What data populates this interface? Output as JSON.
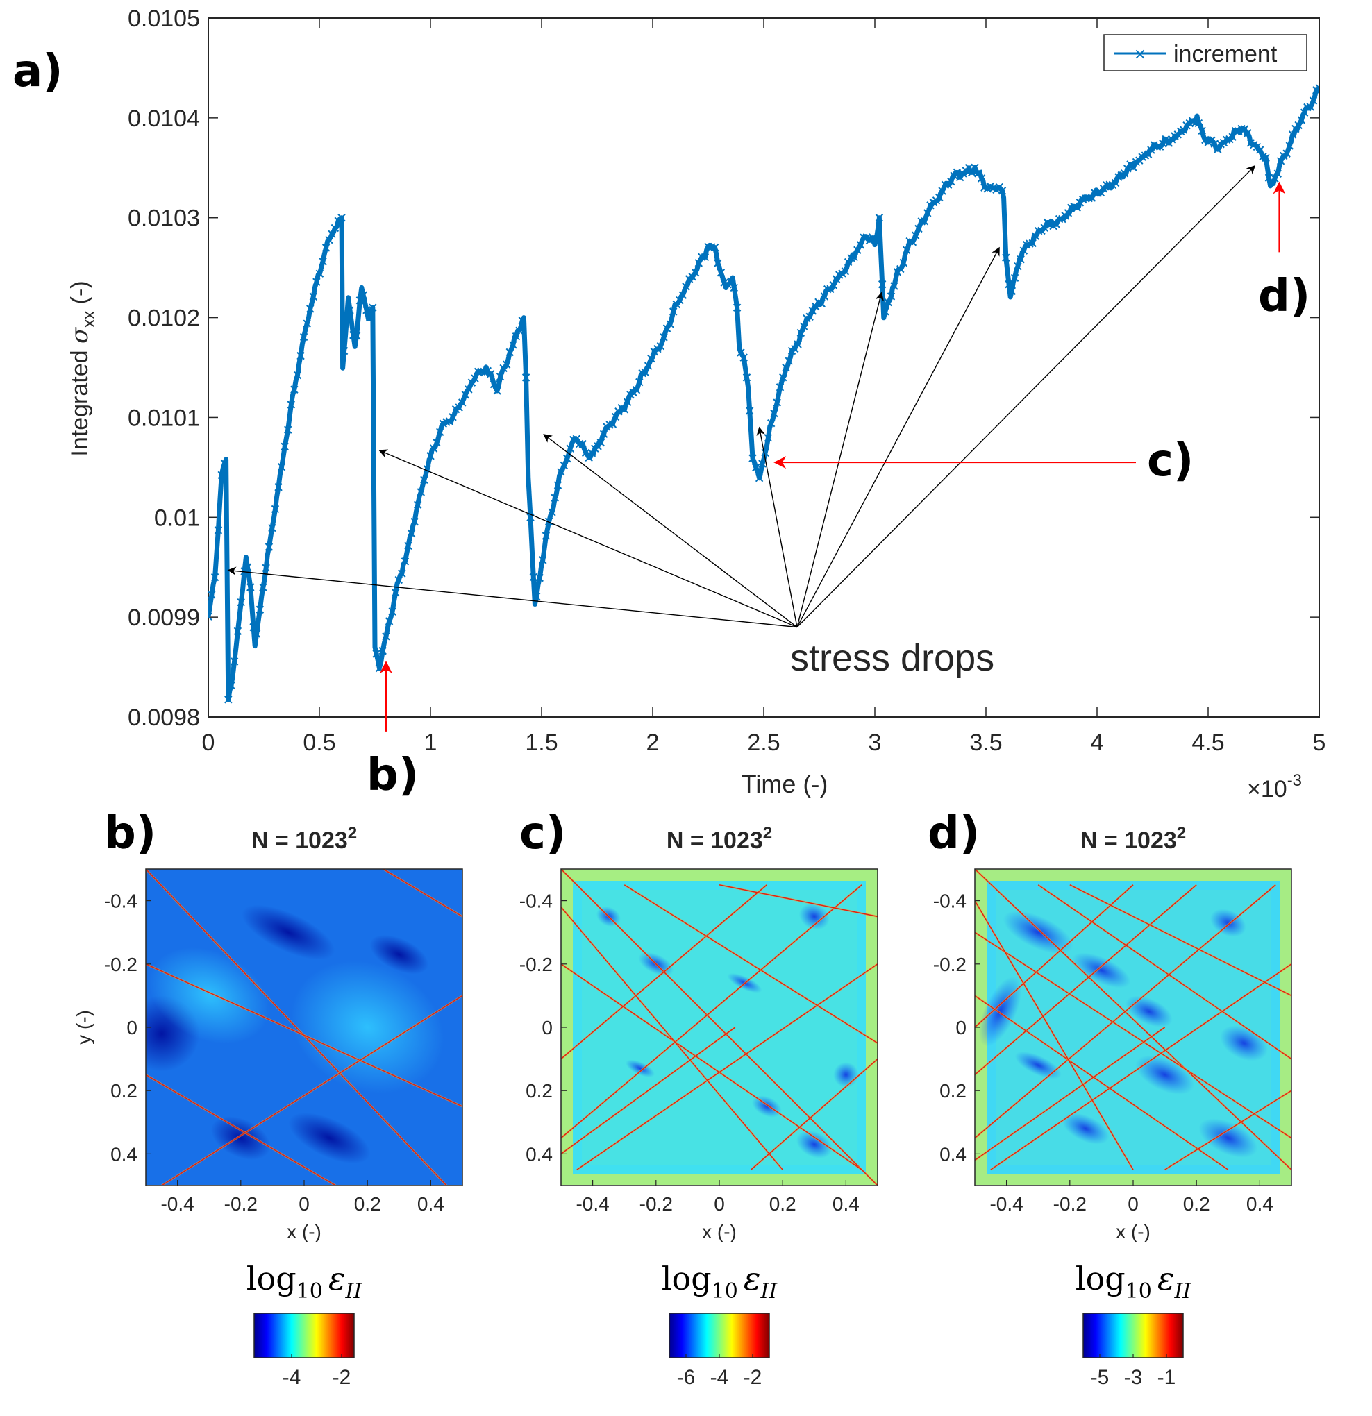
{
  "chart_data": [
    {
      "type": "line",
      "panel": "a)",
      "title": "",
      "xlabel": "Time (-)",
      "ylabel_prefix": "Integrated",
      "ylabel_symbol": "σ",
      "ylabel_sub": "xx",
      "ylabel_suffix": "(-)",
      "x_multiplier_base": "×10",
      "x_multiplier_exp": "-3",
      "xlim": [
        0,
        5
      ],
      "ylim": [
        0.0098,
        0.0105
      ],
      "xticks": [
        0,
        0.5,
        1,
        1.5,
        2,
        2.5,
        3,
        3.5,
        4,
        4.5,
        5
      ],
      "xtick_labels": [
        "0",
        "0.5",
        "1",
        "1.5",
        "2",
        "2.5",
        "3",
        "3.5",
        "4",
        "4.5",
        "5"
      ],
      "yticks": [
        0.0098,
        0.0099,
        0.01,
        0.0101,
        0.0102,
        0.0103,
        0.0104,
        0.0105
      ],
      "ytick_labels": [
        "0.0098",
        "0.0099",
        "0.01",
        "0.0101",
        "0.0102",
        "0.0103",
        "0.0104",
        "0.0105"
      ],
      "legend": "increment",
      "legend_position": "top-right",
      "series": [
        {
          "name": "increment",
          "color": "#0072BD",
          "marker": "x",
          "points": [
            [
              0.0,
              0.0099
            ],
            [
              0.03,
              0.00994
            ],
            [
              0.06,
              0.01004
            ],
            [
              0.08,
              0.010058
            ],
            [
              0.09,
              0.00982
            ],
            [
              0.11,
              0.00984
            ],
            [
              0.14,
              0.0099
            ],
            [
              0.17,
              0.00996
            ],
            [
              0.19,
              0.00993
            ],
            [
              0.21,
              0.00987
            ],
            [
              0.24,
              0.00992
            ],
            [
              0.28,
              0.00998
            ],
            [
              0.33,
              0.01005
            ],
            [
              0.38,
              0.01012
            ],
            [
              0.43,
              0.01018
            ],
            [
              0.48,
              0.01023
            ],
            [
              0.53,
              0.01027
            ],
            [
              0.57,
              0.01029
            ],
            [
              0.6,
              0.0103
            ],
            [
              0.605,
              0.01015
            ],
            [
              0.63,
              0.01022
            ],
            [
              0.66,
              0.01017
            ],
            [
              0.69,
              0.01023
            ],
            [
              0.72,
              0.0102
            ],
            [
              0.74,
              0.01021
            ],
            [
              0.75,
              0.00987
            ],
            [
              0.77,
              0.00985
            ],
            [
              0.8,
              0.00988
            ],
            [
              0.85,
              0.00993
            ],
            [
              0.9,
              0.00997
            ],
            [
              0.95,
              0.01002
            ],
            [
              1.0,
              0.01006
            ],
            [
              1.05,
              0.01009
            ],
            [
              1.1,
              0.0101
            ],
            [
              1.15,
              0.01012
            ],
            [
              1.2,
              0.01014
            ],
            [
              1.25,
              0.01015
            ],
            [
              1.3,
              0.01013
            ],
            [
              1.35,
              0.01016
            ],
            [
              1.4,
              0.01019
            ],
            [
              1.42,
              0.0102
            ],
            [
              1.43,
              0.01014
            ],
            [
              1.44,
              0.01004
            ],
            [
              1.45,
              0.01
            ],
            [
              1.47,
              0.00991
            ],
            [
              1.52,
              0.00998
            ],
            [
              1.58,
              0.01004
            ],
            [
              1.65,
              0.01008
            ],
            [
              1.72,
              0.01006
            ],
            [
              1.8,
              0.01009
            ],
            [
              1.9,
              0.01012
            ],
            [
              2.0,
              0.01016
            ],
            [
              2.05,
              0.01018
            ],
            [
              2.1,
              0.01021
            ],
            [
              2.15,
              0.01023
            ],
            [
              2.2,
              0.01025
            ],
            [
              2.25,
              0.01027
            ],
            [
              2.28,
              0.01027
            ],
            [
              2.3,
              0.01025
            ],
            [
              2.33,
              0.01023
            ],
            [
              2.36,
              0.01024
            ],
            [
              2.38,
              0.01021
            ],
            [
              2.39,
              0.01017
            ],
            [
              2.41,
              0.01016
            ],
            [
              2.43,
              0.01013
            ],
            [
              2.45,
              0.01006
            ],
            [
              2.48,
              0.01004
            ],
            [
              2.52,
              0.01008
            ],
            [
              2.6,
              0.01015
            ],
            [
              2.7,
              0.0102
            ],
            [
              2.8,
              0.01023
            ],
            [
              2.9,
              0.01026
            ],
            [
              2.95,
              0.01028
            ],
            [
              2.99,
              0.01028
            ],
            [
              3.0,
              0.01027
            ],
            [
              3.02,
              0.0103
            ],
            [
              3.04,
              0.0102
            ],
            [
              3.08,
              0.01023
            ],
            [
              3.15,
              0.01027
            ],
            [
              3.25,
              0.01031
            ],
            [
              3.35,
              0.01034
            ],
            [
              3.45,
              0.01035
            ],
            [
              3.48,
              0.01034
            ],
            [
              3.5,
              0.01033
            ],
            [
              3.56,
              0.01033
            ],
            [
              3.58,
              0.01032
            ],
            [
              3.59,
              0.01026
            ],
            [
              3.61,
              0.01022
            ],
            [
              3.65,
              0.01026
            ],
            [
              3.75,
              0.01029
            ],
            [
              3.85,
              0.0103
            ],
            [
              3.95,
              0.01032
            ],
            [
              4.05,
              0.01033
            ],
            [
              4.15,
              0.01035
            ],
            [
              4.25,
              0.01037
            ],
            [
              4.35,
              0.01038
            ],
            [
              4.45,
              0.0104
            ],
            [
              4.48,
              0.01038
            ],
            [
              4.55,
              0.01037
            ],
            [
              4.65,
              0.01039
            ],
            [
              4.72,
              0.01037
            ],
            [
              4.76,
              0.01036
            ],
            [
              4.78,
              0.01033
            ],
            [
              4.82,
              0.01035
            ],
            [
              4.9,
              0.01039
            ],
            [
              5.0,
              0.01043
            ]
          ]
        }
      ],
      "annotations": {
        "stress_drops_label": "stress drops",
        "stress_drop_targets": [
          [
            0.09,
            0.009947
          ],
          [
            0.77,
            0.010067
          ],
          [
            1.51,
            0.010083
          ],
          [
            2.48,
            0.01009
          ],
          [
            3.03,
            0.010225
          ],
          [
            3.56,
            0.01027
          ],
          [
            4.71,
            0.010352
          ]
        ],
        "stress_drop_origin": [
          2.65,
          0.00989
        ],
        "red_markers": [
          {
            "label": "b)",
            "target": [
              0.8,
              0.009855
            ],
            "direction": "up"
          },
          {
            "label": "c)",
            "target": [
              2.55,
              0.010055
            ],
            "direction": "left"
          },
          {
            "label": "d)",
            "target": [
              4.82,
              0.010335
            ],
            "direction": "up"
          }
        ]
      }
    },
    {
      "type": "heatmap",
      "panel": "b)",
      "title_base": "N = 1023",
      "title_exp": "2",
      "xlabel": "x (-)",
      "ylabel": "y (-)",
      "xlim": [
        -0.5,
        0.5
      ],
      "ylim": [
        0.5,
        -0.5
      ],
      "xtick_labels": [
        "-0.4",
        "-0.2",
        "0",
        "0.2",
        "0.4"
      ],
      "ytick_labels": [
        "-0.4",
        "-0.2",
        "0",
        "0.2",
        "0.4"
      ],
      "colorbar_label_base": "log",
      "colorbar_label_sub": "10",
      "colorbar_label_symbol": "ε",
      "colorbar_label_symbol_sub": "II",
      "colorbar_ticks": [
        "-4",
        "-2"
      ],
      "colorbar_range": [
        -5.5,
        -1.5
      ],
      "background_level": "dark-blue"
    },
    {
      "type": "heatmap",
      "panel": "c)",
      "title_base": "N = 1023",
      "title_exp": "2",
      "xlabel": "x (-)",
      "ylabel": "",
      "xlim": [
        -0.5,
        0.5
      ],
      "ylim": [
        0.5,
        -0.5
      ],
      "xtick_labels": [
        "-0.4",
        "-0.2",
        "0",
        "0.2",
        "0.4"
      ],
      "ytick_labels": [
        "-0.4",
        "-0.2",
        "0",
        "0.2",
        "0.4"
      ],
      "colorbar_label_base": "log",
      "colorbar_label_sub": "10",
      "colorbar_label_symbol": "ε",
      "colorbar_label_symbol_sub": "II",
      "colorbar_ticks": [
        "-6",
        "-4",
        "-2"
      ],
      "colorbar_range": [
        -7,
        -1
      ],
      "background_level": "cyan"
    },
    {
      "type": "heatmap",
      "panel": "d)",
      "title_base": "N = 1023",
      "title_exp": "2",
      "xlabel": "x (-)",
      "ylabel": "",
      "xlim": [
        -0.5,
        0.5
      ],
      "ylim": [
        0.5,
        -0.5
      ],
      "xtick_labels": [
        "-0.4",
        "-0.2",
        "0",
        "0.2",
        "0.4"
      ],
      "ytick_labels": [
        "-0.4",
        "-0.2",
        "0",
        "0.2",
        "0.4"
      ],
      "colorbar_label_base": "log",
      "colorbar_label_sub": "10",
      "colorbar_label_symbol": "ε",
      "colorbar_label_symbol_sub": "II",
      "colorbar_ticks": [
        "-5",
        "-3",
        "-1"
      ],
      "colorbar_range": [
        -6,
        0
      ],
      "background_level": "cyan"
    }
  ],
  "colors": {
    "series": "#0072BD",
    "red_arrow": "#ff0000",
    "black_arrow": "#000000",
    "axis": "#262626"
  }
}
